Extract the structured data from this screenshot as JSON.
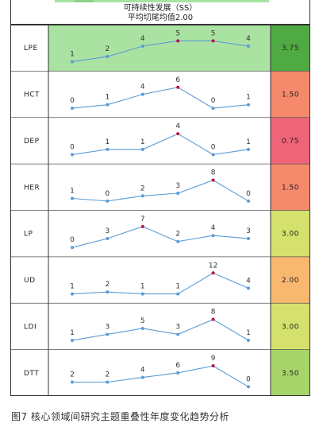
{
  "header": {
    "title": "可持续性发展（SS）",
    "subtitle": "平均切尾均值2.00"
  },
  "chart_data": {
    "type": "line",
    "rows": [
      {
        "name": "LPE",
        "values": [
          1,
          2,
          4,
          5,
          5,
          4
        ],
        "score": "3.75",
        "color": "#4faa43"
      },
      {
        "name": "HCT",
        "values": [
          0,
          1,
          4,
          6,
          0,
          1
        ],
        "score": "1.50",
        "color": "#f4896b"
      },
      {
        "name": "DEP",
        "values": [
          0,
          1,
          1,
          4,
          0,
          1
        ],
        "score": "0.75",
        "color": "#f0647a"
      },
      {
        "name": "HER",
        "values": [
          1,
          0,
          2,
          3,
          8,
          0
        ],
        "score": "1.50",
        "color": "#f4896b"
      },
      {
        "name": "LP",
        "values": [
          0,
          3,
          7,
          2,
          4,
          3
        ],
        "score": "3.00",
        "color": "#d4e16c"
      },
      {
        "name": "UD",
        "values": [
          1,
          2,
          1,
          1,
          12,
          4
        ],
        "score": "2.00",
        "color": "#f9b86f"
      },
      {
        "name": "LDI",
        "values": [
          1,
          3,
          5,
          3,
          8,
          1
        ],
        "score": "3.00",
        "color": "#d4e16c"
      },
      {
        "name": "DTT",
        "values": [
          2,
          2,
          4,
          6,
          9,
          0
        ],
        "score": "3.50",
        "color": "#a8d46a"
      }
    ],
    "highlight_row": "LPE",
    "highlight_bg": "#a9e2a1",
    "line_color": "#5b9bd5",
    "max_marker_color": "#c0143c"
  },
  "caption": "图7  核心领域间研究主题重叠性年度变化趋势分析"
}
